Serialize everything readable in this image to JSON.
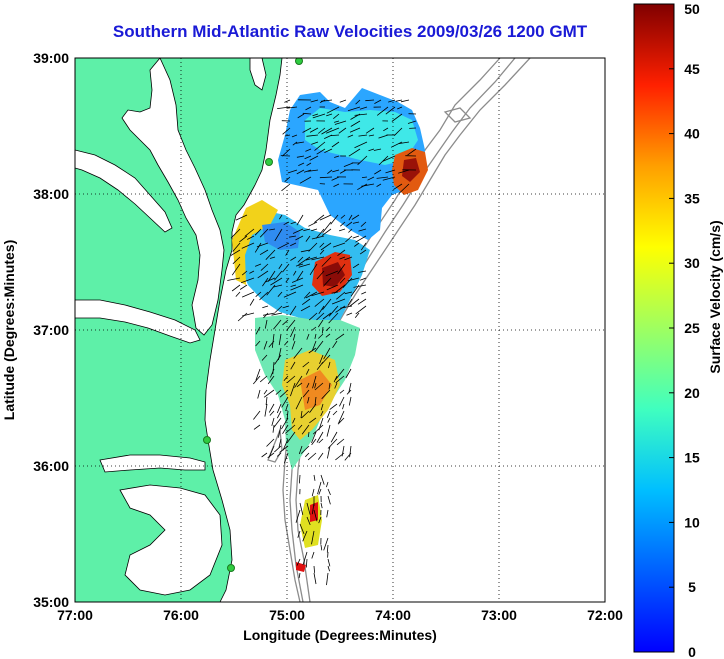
{
  "title": "Southern Mid-Atlantic Raw Velocities 2009/03/26 1200 GMT",
  "map": {
    "x_axis": {
      "label": "Longitude (Degrees:Minutes)",
      "ticks": [
        {
          "value": -77,
          "label": "77:00"
        },
        {
          "value": -76,
          "label": "76:00"
        },
        {
          "value": -75,
          "label": "75:00"
        },
        {
          "value": -74,
          "label": "74:00"
        },
        {
          "value": -73,
          "label": "73:00"
        },
        {
          "value": -72,
          "label": "72:00"
        }
      ],
      "range": [
        -77,
        -72
      ]
    },
    "y_axis": {
      "label": "Latitude (Degrees:Minutes)",
      "ticks": [
        {
          "value": 35,
          "label": "35:00"
        },
        {
          "value": 36,
          "label": "36:00"
        },
        {
          "value": 37,
          "label": "37:00"
        },
        {
          "value": 38,
          "label": "38:00"
        },
        {
          "value": 39,
          "label": "39:00"
        }
      ],
      "range": [
        35,
        39
      ]
    },
    "grid": "dotted",
    "land_color": "#5ef0a8",
    "bathymetry_color": "#8c8c8c",
    "station_color": "#2ecc40"
  },
  "colorbar": {
    "label": "Surface Velocity (cm/s)",
    "range": [
      0,
      50
    ],
    "ticks": [
      "0",
      "5",
      "10",
      "15",
      "20",
      "25",
      "30",
      "35",
      "40",
      "45",
      "50"
    ],
    "colormap": "jet"
  }
}
